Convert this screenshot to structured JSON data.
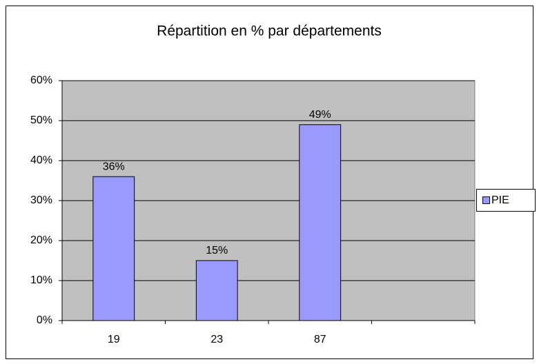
{
  "chart_data": {
    "type": "bar",
    "title": "Répartition en % par départements",
    "categories": [
      "19",
      "23",
      "87",
      null
    ],
    "series": [
      {
        "name": "PIE",
        "color": "#9999ff",
        "values": [
          36,
          15,
          49,
          null
        ],
        "value_labels": [
          "36%",
          "15%",
          "49%",
          null
        ]
      }
    ],
    "ylim": [
      0,
      60
    ],
    "yticks": [
      {
        "value": 0,
        "label": "0%"
      },
      {
        "value": 10,
        "label": "10%"
      },
      {
        "value": 20,
        "label": "20%"
      },
      {
        "value": 30,
        "label": "30%"
      },
      {
        "value": 40,
        "label": "40%"
      },
      {
        "value": 50,
        "label": "50%"
      },
      {
        "value": 60,
        "label": "60%"
      }
    ],
    "grid": true,
    "legend": "right",
    "plot_background": "#c0c0c0"
  }
}
